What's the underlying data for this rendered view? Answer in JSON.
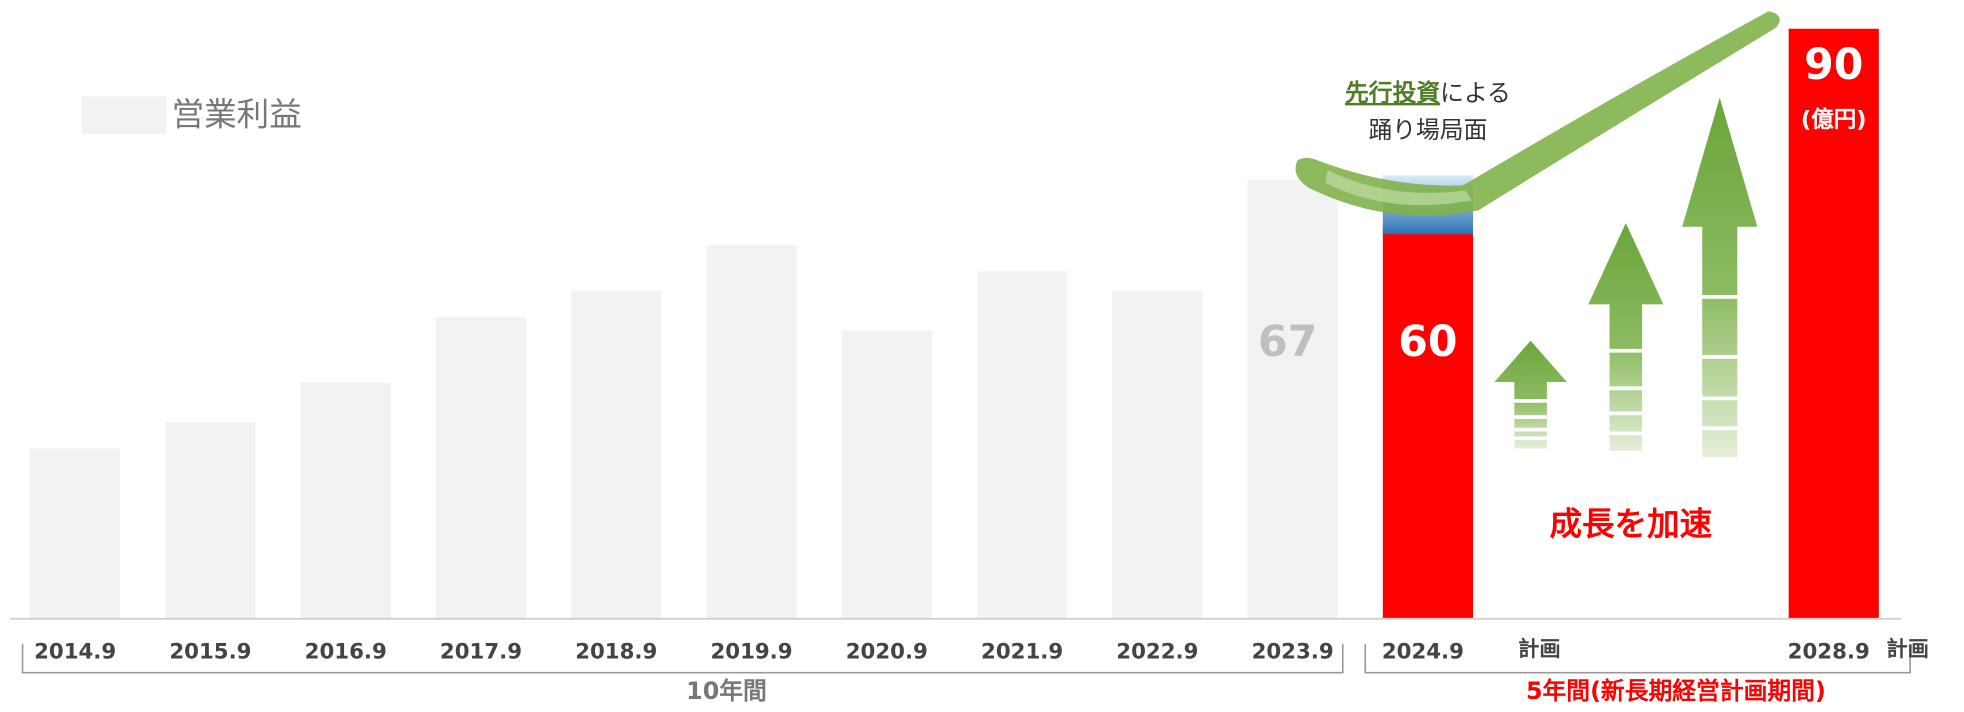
{
  "chart_data": {
    "type": "bar",
    "categories": [
      "2014.9",
      "2015.9",
      "2016.9",
      "2017.9",
      "2018.9",
      "2019.9",
      "2020.9",
      "2021.9",
      "2022.9",
      "2023.9",
      "2024.9",
      "2028.9"
    ],
    "series": [
      {
        "name": "営業利益",
        "color": "#f2f2f2",
        "colors": [
          "#f2f2f2",
          "#f2f2f2",
          "#f2f2f2",
          "#f2f2f2",
          "#f2f2f2",
          "#f2f2f2",
          "#f2f2f2",
          "#f2f2f2",
          "#f2f2f2",
          "#f2f2f2",
          "#ff0000",
          "#ff0000"
        ],
        "values": [
          26,
          30,
          36,
          46,
          50,
          57,
          44,
          53,
          50,
          67,
          60,
          90
        ],
        "value_labels": [
          null,
          null,
          null,
          null,
          null,
          null,
          null,
          null,
          null,
          "67",
          "60",
          "90"
        ]
      }
    ],
    "ylim": [
      0,
      94
    ],
    "annotations": {
      "unit": "(億円)",
      "plan": "計画",
      "period_past": "10年間",
      "period_plan": "5年間(新長期経営計画期間)",
      "invest": "先行投資",
      "invest_rest": "による",
      "plateau": "踊り場局面",
      "accelerate": "成長を加速"
    }
  }
}
